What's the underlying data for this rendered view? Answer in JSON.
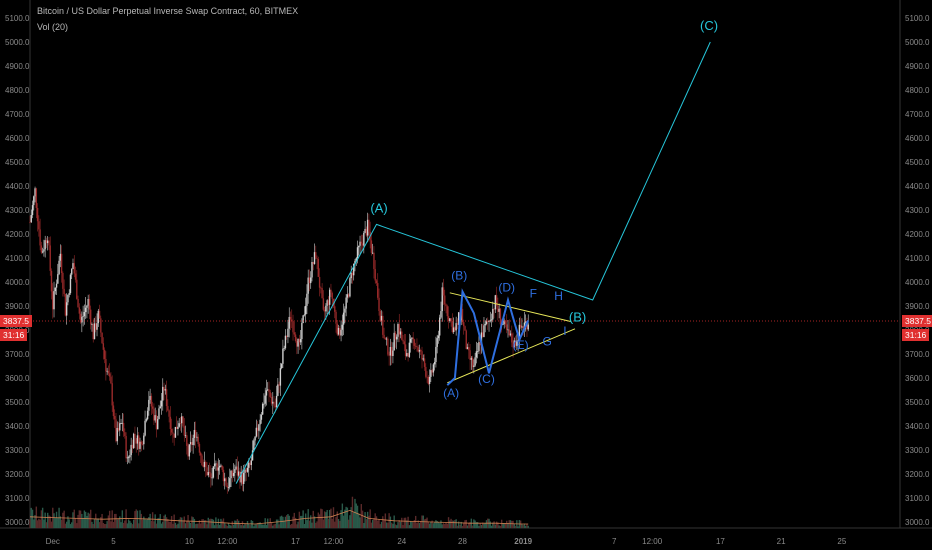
{
  "header": {
    "symbol_line": "Bitcoin / US Dollar Perpetual Inverse Swap Contract, 60, BITMEX",
    "volume_label": "Vol (20)"
  },
  "price_scale": {
    "current_price": "3837.5",
    "countdown": "31:16"
  },
  "colors": {
    "background": "#000000",
    "wave_lines": "#26c6da",
    "triangle_lines": "#e8e85a",
    "inner_waves": "#2f6fe0",
    "price_line": "#e03030",
    "axis_text": "#8a8a8a"
  },
  "chart_data": {
    "type": "candlestick",
    "title": "Bitcoin / US Dollar Perpetual Inverse Swap Contract, 60, BITMEX",
    "ylim": [
      2950,
      5150
    ],
    "y_ticks": [
      3000,
      3100,
      3200,
      3300,
      3400,
      3500,
      3600,
      3700,
      3800,
      3900,
      4000,
      4100,
      4200,
      4300,
      4400,
      4500,
      4600,
      4700,
      4800,
      4900,
      5000,
      5100
    ],
    "y_tick_labels": [
      "3000.0",
      "3100.0",
      "3200.0",
      "3300.0",
      "3400.0",
      "3500.0",
      "3600.0",
      "3700.0",
      "3800.0",
      "3900.0",
      "4000.0",
      "4100.0",
      "4200.0",
      "4300.0",
      "4400.0",
      "4500.0",
      "4600.0",
      "4700.0",
      "4800.0",
      "4900.0",
      "5000.0",
      "5100.0"
    ],
    "x_tick_labels": [
      "Dec",
      "5",
      "10",
      "12:00",
      "17",
      "12:00",
      "24",
      "28",
      "2019",
      "7",
      "12:00",
      "17",
      "21",
      "25"
    ],
    "x_tick_hours": [
      0,
      96,
      216,
      276,
      384,
      444,
      552,
      648,
      744,
      888,
      948,
      1056,
      1152,
      1248
    ],
    "x_range_hours": [
      -36,
      1340
    ],
    "price_path": [
      [
        -36,
        4250
      ],
      [
        -28,
        4380
      ],
      [
        -18,
        4120
      ],
      [
        -8,
        4200
      ],
      [
        0,
        3900
      ],
      [
        12,
        4120
      ],
      [
        20,
        3880
      ],
      [
        32,
        4080
      ],
      [
        44,
        3830
      ],
      [
        56,
        3920
      ],
      [
        64,
        3780
      ],
      [
        72,
        3860
      ],
      [
        84,
        3650
      ],
      [
        92,
        3560
      ],
      [
        100,
        3350
      ],
      [
        110,
        3420
      ],
      [
        118,
        3250
      ],
      [
        128,
        3360
      ],
      [
        140,
        3320
      ],
      [
        152,
        3520
      ],
      [
        164,
        3410
      ],
      [
        176,
        3560
      ],
      [
        190,
        3360
      ],
      [
        202,
        3440
      ],
      [
        214,
        3280
      ],
      [
        226,
        3380
      ],
      [
        238,
        3240
      ],
      [
        250,
        3180
      ],
      [
        262,
        3250
      ],
      [
        276,
        3150
      ],
      [
        288,
        3220
      ],
      [
        300,
        3180
      ],
      [
        312,
        3230
      ],
      [
        326,
        3420
      ],
      [
        338,
        3550
      ],
      [
        352,
        3480
      ],
      [
        364,
        3700
      ],
      [
        376,
        3860
      ],
      [
        390,
        3720
      ],
      [
        404,
        4000
      ],
      [
        416,
        4120
      ],
      [
        428,
        3860
      ],
      [
        440,
        3960
      ],
      [
        452,
        3780
      ],
      [
        462,
        3880
      ],
      [
        474,
        4050
      ],
      [
        486,
        4150
      ],
      [
        498,
        4230
      ],
      [
        508,
        4080
      ],
      [
        516,
        3900
      ],
      [
        524,
        3760
      ],
      [
        534,
        3700
      ],
      [
        546,
        3820
      ],
      [
        558,
        3700
      ],
      [
        572,
        3760
      ],
      [
        584,
        3680
      ],
      [
        596,
        3580
      ],
      [
        606,
        3700
      ],
      [
        616,
        3950
      ],
      [
        626,
        3860
      ],
      [
        636,
        3790
      ],
      [
        646,
        3880
      ],
      [
        656,
        3700
      ],
      [
        666,
        3640
      ],
      [
        678,
        3780
      ],
      [
        690,
        3840
      ],
      [
        700,
        3920
      ],
      [
        710,
        3830
      ],
      [
        720,
        3780
      ],
      [
        730,
        3740
      ],
      [
        740,
        3810
      ],
      [
        752,
        3837
      ]
    ],
    "volume_ylim": [
      0,
      100
    ],
    "volume_ma_path": [
      [
        -36,
        14
      ],
      [
        0,
        13
      ],
      [
        40,
        12
      ],
      [
        80,
        11
      ],
      [
        120,
        12
      ],
      [
        160,
        11
      ],
      [
        200,
        9
      ],
      [
        240,
        8
      ],
      [
        280,
        6
      ],
      [
        320,
        5
      ],
      [
        360,
        8
      ],
      [
        400,
        12
      ],
      [
        440,
        14
      ],
      [
        470,
        22
      ],
      [
        500,
        12
      ],
      [
        540,
        9
      ],
      [
        580,
        8
      ],
      [
        620,
        7
      ],
      [
        660,
        6
      ],
      [
        700,
        6
      ],
      [
        740,
        5
      ],
      [
        752,
        5
      ]
    ],
    "annotations": {
      "primary_wave": {
        "label_series": [
          "(A)",
          "(B)",
          "(C)"
        ],
        "points": [
          [
            290,
            3160
          ],
          [
            512,
            4240
          ],
          [
            854,
            3925
          ],
          [
            1040,
            5000
          ]
        ],
        "labels": [
          {
            "text": "(A)",
            "x": 516,
            "y": 4290
          },
          {
            "text": "(B)",
            "x": 830,
            "y": 3835
          },
          {
            "text": "(C)",
            "x": 1038,
            "y": 5050
          }
        ]
      },
      "triangle_upper": [
        [
          628,
          3955
        ],
        [
          820,
          3835
        ]
      ],
      "triangle_lower": [
        [
          624,
          3580
        ],
        [
          826,
          3805
        ]
      ],
      "triangle_waves": {
        "points": [
          [
            624,
            3570
          ],
          [
            636,
            3600
          ],
          [
            648,
            3960
          ],
          [
            666,
            3870
          ],
          [
            690,
            3620
          ],
          [
            720,
            3925
          ],
          [
            738,
            3760
          ],
          [
            752,
            3840
          ]
        ],
        "labels": [
          {
            "text": "(A)",
            "x": 630,
            "y": 3520
          },
          {
            "text": "(B)",
            "x": 643,
            "y": 4010
          },
          {
            "text": "(C)",
            "x": 686,
            "y": 3580
          },
          {
            "text": "(D)",
            "x": 718,
            "y": 3960
          },
          {
            "text": "(E)",
            "x": 740,
            "y": 3720
          }
        ]
      },
      "future_waves": [
        {
          "text": "F",
          "x": 760,
          "y": 3935
        },
        {
          "text": "G",
          "x": 782,
          "y": 3735
        },
        {
          "text": "H",
          "x": 800,
          "y": 3925
        },
        {
          "text": "I",
          "x": 810,
          "y": 3780
        }
      ]
    }
  }
}
